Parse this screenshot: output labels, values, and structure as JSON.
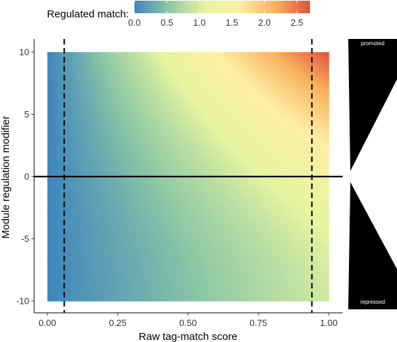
{
  "chart_data": {
    "type": "heatmap",
    "title": "",
    "xlabel": "Raw tag-match score",
    "ylabel": "Module regulation modifier",
    "xlim": [
      0,
      1
    ],
    "ylim": [
      -10,
      10
    ],
    "x_ticks": [
      0,
      0.25,
      0.5,
      0.75,
      1
    ],
    "x_tick_labels": [
      "0.00",
      "0.25",
      "0.50",
      "0.75",
      "1.00"
    ],
    "y_ticks": [
      -10,
      -5,
      0,
      5,
      10
    ],
    "y_tick_labels": [
      "-10",
      "-5",
      "0",
      "5",
      "10"
    ],
    "fill_variable": "Regulated match",
    "fill_range": [
      0,
      2.7
    ],
    "colorbar": {
      "title": "Regulated match:",
      "ticks": [
        0,
        0.5,
        1,
        1.5,
        2,
        2.5
      ],
      "tick_labels": [
        "0.0",
        "0.5",
        "1.0",
        "1.5",
        "2.0",
        "2.5"
      ],
      "colors": [
        "#3e86be",
        "#8fc9a4",
        "#e6f4a0",
        "#fdeea4",
        "#f9b25e",
        "#e0503f"
      ],
      "position": "top"
    },
    "corner_values": [
      {
        "x": 0,
        "y": -10,
        "value": 0.0
      },
      {
        "x": 0,
        "y": 10,
        "value": 0.0
      },
      {
        "x": 1,
        "y": -10,
        "value": 0.95
      },
      {
        "x": 1,
        "y": 0,
        "value": 1.4
      },
      {
        "x": 1,
        "y": 10,
        "value": 2.7
      }
    ],
    "reference_lines": [
      {
        "orientation": "vertical",
        "x": 0.06,
        "style": "dashed"
      },
      {
        "orientation": "vertical",
        "x": 0.94,
        "style": "dashed"
      },
      {
        "orientation": "horizontal",
        "y": 0,
        "style": "solid"
      }
    ],
    "side_annotation": {
      "top_label": "promoted",
      "bottom_label": "repressed",
      "color": "#000000"
    },
    "grid": false
  }
}
